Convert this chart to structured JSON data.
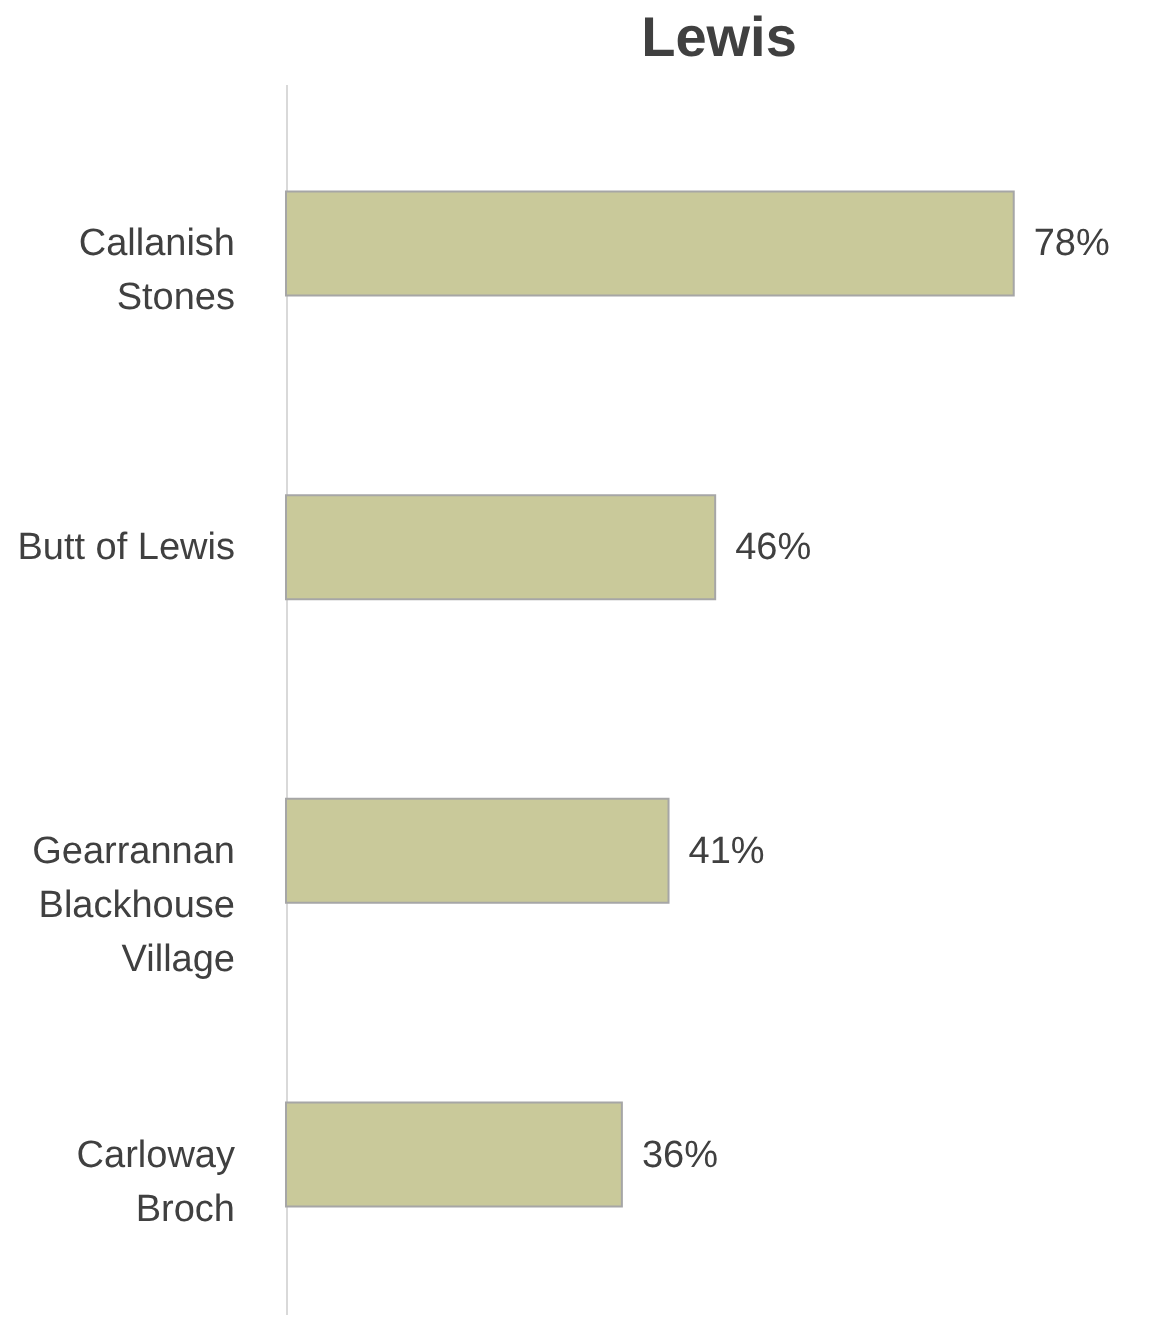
{
  "chart_data": {
    "type": "bar",
    "orientation": "horizontal",
    "title": "Lewis",
    "categories": [
      "Callanish Stones",
      "Butt of Lewis",
      "Gearrannan Blackhouse Village",
      "Carloway Broch"
    ],
    "values": [
      78,
      46,
      41,
      36
    ],
    "value_labels": [
      "78%",
      "46%",
      "41%",
      "36%"
    ],
    "color": "#c9c99a",
    "tick_labels": "y"
  }
}
